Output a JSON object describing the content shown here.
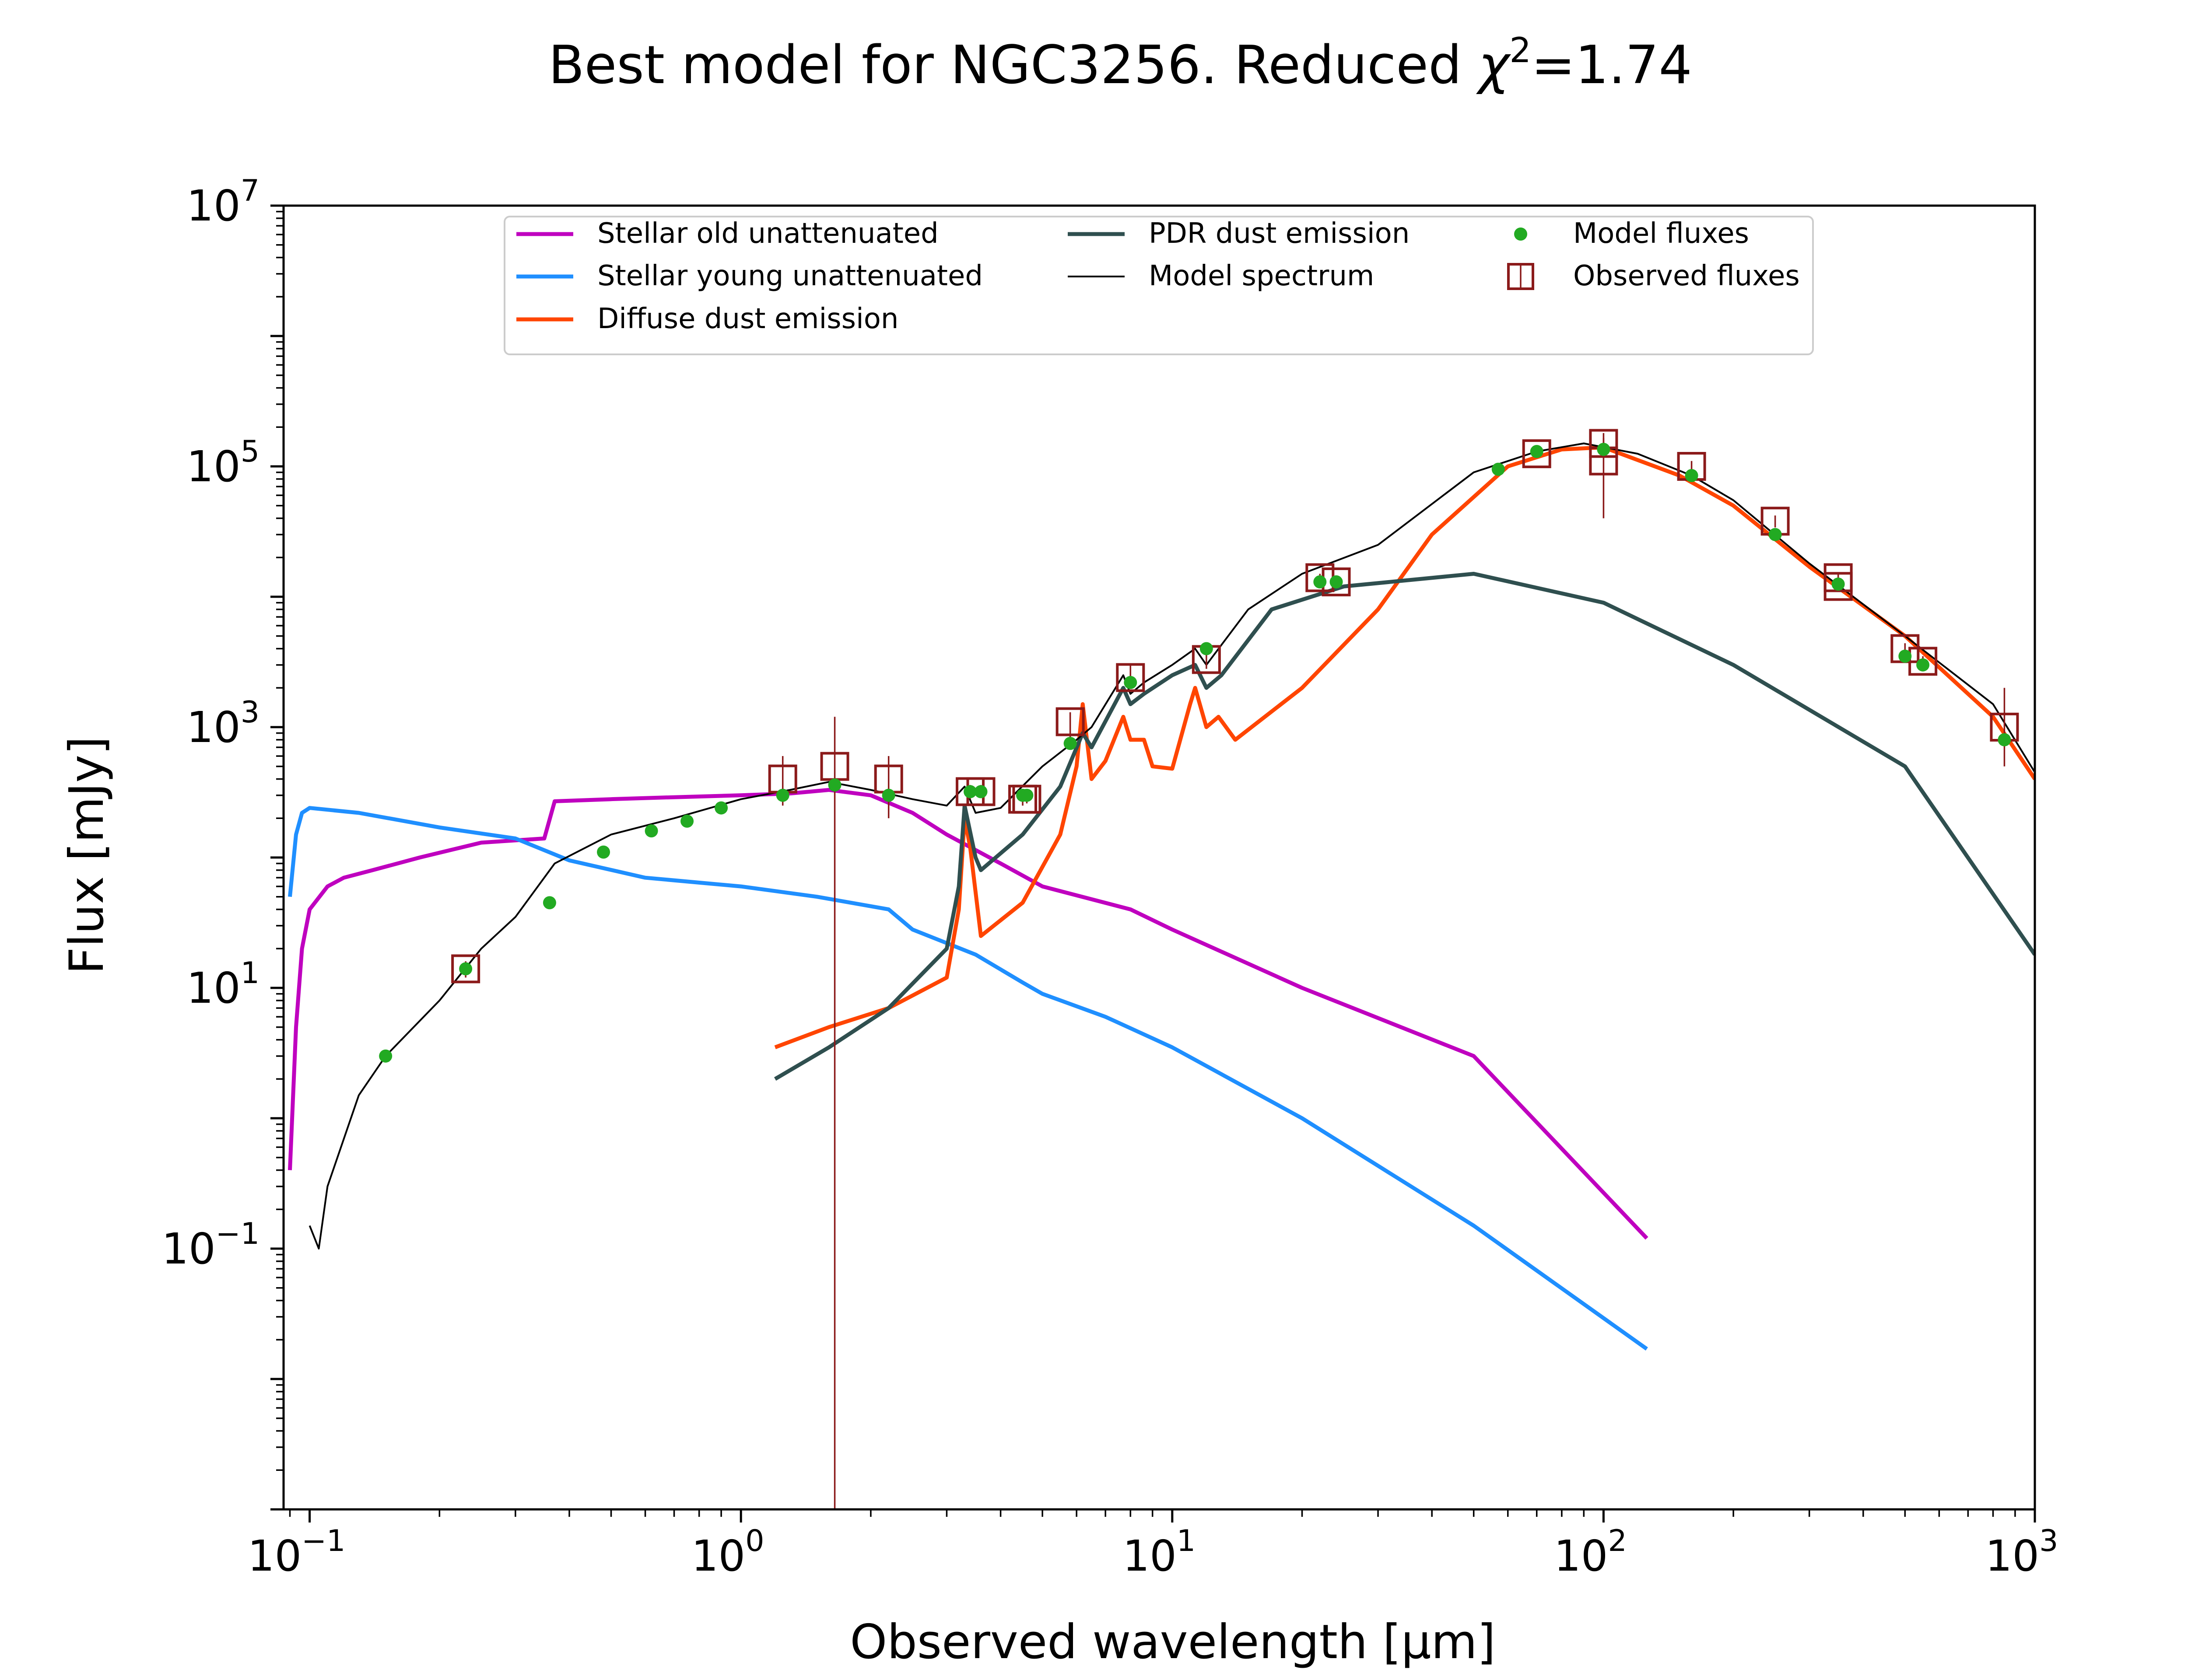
{
  "chart_data": {
    "type": "line",
    "title": {
      "main": "Best model for NGC3256. Reduced ",
      "chi": "χ",
      "chi_sup": "2",
      "value": "=1.74"
    },
    "xlabel": "Observed wavelength [μm]",
    "ylabel": "Flux [mJy]",
    "x_scale": "log",
    "y_scale": "log",
    "xlim": [
      0.087,
      1000
    ],
    "ylim": [
      0.001,
      10000000
    ],
    "x_ticks": [
      {
        "base": "10",
        "exp": "−1",
        "value": 0.1
      },
      {
        "base": "10",
        "exp": "0",
        "value": 1
      },
      {
        "base": "10",
        "exp": "1",
        "value": 10
      },
      {
        "base": "10",
        "exp": "2",
        "value": 100
      },
      {
        "base": "10",
        "exp": "3",
        "value": 1000
      }
    ],
    "y_ticks": [
      {
        "base": "10",
        "exp": "−1",
        "value": 0.1
      },
      {
        "base": "10",
        "exp": "1",
        "value": 10
      },
      {
        "base": "10",
        "exp": "3",
        "value": 1000
      },
      {
        "base": "10",
        "exp": "5",
        "value": 100000
      },
      {
        "base": "10",
        "exp": "7",
        "value": 10000000
      }
    ],
    "grid": false,
    "legend_position": "top-center",
    "series": [
      {
        "name": "Stellar old unattenuated",
        "color": "#bf00bf",
        "points": [
          [
            0.09,
            0.4
          ],
          [
            0.093,
            5
          ],
          [
            0.096,
            20
          ],
          [
            0.1,
            40
          ],
          [
            0.11,
            60
          ],
          [
            0.12,
            70
          ],
          [
            0.14,
            80
          ],
          [
            0.18,
            100
          ],
          [
            0.25,
            130
          ],
          [
            0.35,
            140
          ],
          [
            0.37,
            270
          ],
          [
            0.5,
            280
          ],
          [
            0.7,
            290
          ],
          [
            1.0,
            300
          ],
          [
            1.3,
            310
          ],
          [
            1.6,
            330
          ],
          [
            2.0,
            300
          ],
          [
            2.5,
            220
          ],
          [
            3.0,
            150
          ],
          [
            4.0,
            90
          ],
          [
            5.0,
            60
          ],
          [
            8.0,
            40
          ],
          [
            10,
            28
          ],
          [
            20,
            10
          ],
          [
            50,
            3
          ],
          [
            126,
            0.12
          ]
        ]
      },
      {
        "name": "Stellar young unattenuated",
        "color": "#1f8fff",
        "points": [
          [
            0.09,
            50
          ],
          [
            0.093,
            150
          ],
          [
            0.096,
            220
          ],
          [
            0.1,
            240
          ],
          [
            0.13,
            220
          ],
          [
            0.2,
            170
          ],
          [
            0.3,
            140
          ],
          [
            0.4,
            95
          ],
          [
            0.6,
            70
          ],
          [
            1.0,
            60
          ],
          [
            1.5,
            50
          ],
          [
            2.2,
            40
          ],
          [
            2.5,
            28
          ],
          [
            3.5,
            18
          ],
          [
            4.5,
            11
          ],
          [
            5,
            9
          ],
          [
            7,
            6
          ],
          [
            10,
            3.5
          ],
          [
            20,
            1.0
          ],
          [
            50,
            0.15
          ],
          [
            126,
            0.017
          ]
        ]
      },
      {
        "name": "Diffuse dust emission",
        "color": "#ff4500",
        "points": [
          [
            1.2,
            3.5
          ],
          [
            1.6,
            5
          ],
          [
            2.2,
            7
          ],
          [
            3.0,
            12
          ],
          [
            3.2,
            40
          ],
          [
            3.3,
            200
          ],
          [
            3.4,
            120
          ],
          [
            3.6,
            25
          ],
          [
            4.5,
            45
          ],
          [
            5.5,
            150
          ],
          [
            6.0,
            500
          ],
          [
            6.2,
            1500
          ],
          [
            6.5,
            400
          ],
          [
            7.0,
            550
          ],
          [
            7.7,
            1200
          ],
          [
            8.0,
            800
          ],
          [
            8.6,
            800
          ],
          [
            9.0,
            500
          ],
          [
            10,
            480
          ],
          [
            11.0,
            1500
          ],
          [
            11.3,
            2000
          ],
          [
            12,
            1000
          ],
          [
            12.8,
            1200
          ],
          [
            14,
            800
          ],
          [
            20,
            2000
          ],
          [
            30,
            8000
          ],
          [
            40,
            30000
          ],
          [
            60,
            100000
          ],
          [
            80,
            135000
          ],
          [
            100,
            140000
          ],
          [
            150,
            85000
          ],
          [
            200,
            50000
          ],
          [
            300,
            17000
          ],
          [
            500,
            5000
          ],
          [
            800,
            1200
          ],
          [
            1000,
            400
          ]
        ]
      },
      {
        "name": "PDR dust emission",
        "color": "#2f4f4f",
        "points": [
          [
            1.2,
            2
          ],
          [
            1.6,
            3.5
          ],
          [
            2.2,
            7
          ],
          [
            3.0,
            20
          ],
          [
            3.2,
            60
          ],
          [
            3.3,
            250
          ],
          [
            3.5,
            100
          ],
          [
            3.6,
            80
          ],
          [
            4.5,
            150
          ],
          [
            5.5,
            350
          ],
          [
            6.2,
            900
          ],
          [
            6.5,
            700
          ],
          [
            7.7,
            2000
          ],
          [
            8.0,
            1500
          ],
          [
            8.6,
            1800
          ],
          [
            10,
            2500
          ],
          [
            11.3,
            3000
          ],
          [
            12,
            2000
          ],
          [
            13,
            2500
          ],
          [
            17,
            8000
          ],
          [
            25,
            12000
          ],
          [
            50,
            15000
          ],
          [
            100,
            9000
          ],
          [
            200,
            3000
          ],
          [
            500,
            500
          ],
          [
            1000,
            18
          ]
        ]
      },
      {
        "name": "Model spectrum",
        "color": "#000000",
        "points": [
          [
            0.1,
            0.15
          ],
          [
            0.105,
            0.1
          ],
          [
            0.11,
            0.3
          ],
          [
            0.13,
            1.5
          ],
          [
            0.15,
            3
          ],
          [
            0.2,
            8
          ],
          [
            0.25,
            20
          ],
          [
            0.3,
            35
          ],
          [
            0.37,
            90
          ],
          [
            0.5,
            150
          ],
          [
            0.7,
            200
          ],
          [
            1.0,
            280
          ],
          [
            1.3,
            330
          ],
          [
            1.6,
            380
          ],
          [
            2.0,
            330
          ],
          [
            2.5,
            280
          ],
          [
            3.0,
            250
          ],
          [
            3.3,
            350
          ],
          [
            3.5,
            220
          ],
          [
            4.0,
            240
          ],
          [
            5.0,
            500
          ],
          [
            6.0,
            800
          ],
          [
            6.5,
            1000
          ],
          [
            7.7,
            2500
          ],
          [
            8.0,
            1800
          ],
          [
            8.6,
            2200
          ],
          [
            10,
            3000
          ],
          [
            11.3,
            4000
          ],
          [
            12,
            3000
          ],
          [
            15,
            8000
          ],
          [
            20,
            15000
          ],
          [
            30,
            25000
          ],
          [
            50,
            90000
          ],
          [
            70,
            130000
          ],
          [
            90,
            150000
          ],
          [
            120,
            125000
          ],
          [
            160,
            85000
          ],
          [
            200,
            55000
          ],
          [
            300,
            18000
          ],
          [
            500,
            5000
          ],
          [
            800,
            1500
          ],
          [
            1000,
            450
          ]
        ]
      }
    ],
    "model_fluxes": {
      "name": "Model fluxes",
      "color": "#22aa22",
      "x": [
        0.15,
        0.23,
        0.36,
        0.48,
        0.62,
        0.75,
        0.9,
        1.25,
        1.65,
        2.2,
        3.4,
        3.6,
        4.5,
        4.6,
        5.8,
        8.0,
        12,
        22,
        24,
        57,
        70,
        100,
        160,
        250,
        350,
        500,
        550,
        850
      ],
      "y": [
        3,
        14,
        45,
        110,
        160,
        190,
        240,
        300,
        360,
        300,
        320,
        320,
        300,
        300,
        750,
        2200,
        4000,
        13000,
        13000,
        95000,
        130000,
        135000,
        85000,
        30000,
        12500,
        3500,
        3000,
        800
      ]
    },
    "observed_fluxes": {
      "name": "Observed fluxes",
      "color": "#8b1a1a",
      "x": [
        0.23,
        1.25,
        1.65,
        2.2,
        3.4,
        3.6,
        4.5,
        4.6,
        5.8,
        8.0,
        12,
        22,
        24,
        70,
        100,
        100,
        160,
        250,
        350,
        350,
        500,
        550,
        850
      ],
      "y": [
        14,
        400,
        500,
        400,
        320,
        320,
        280,
        280,
        1100,
        2400,
        3300,
        14000,
        13000,
        125000,
        150000,
        110000,
        100000,
        38000,
        14000,
        12000,
        4000,
        3200,
        1000
      ],
      "err_low": [
        12,
        250,
        0.001,
        200,
        280,
        300,
        250,
        260,
        800,
        2000,
        2800,
        13000,
        12000,
        120000,
        130000,
        40000,
        90000,
        34000,
        13000,
        11000,
        3600,
        2900,
        500
      ],
      "err_high": [
        16,
        600,
        1200,
        600,
        360,
        360,
        320,
        320,
        1300,
        3000,
        3800,
        15000,
        14000,
        130000,
        165000,
        180000,
        110000,
        42000,
        15000,
        13000,
        4400,
        3500,
        2000
      ]
    },
    "legend": [
      "Stellar old unattenuated",
      "Stellar young unattenuated",
      "Diffuse dust emission",
      "PDR dust emission",
      "Model spectrum",
      "Model fluxes",
      "Observed fluxes"
    ]
  }
}
